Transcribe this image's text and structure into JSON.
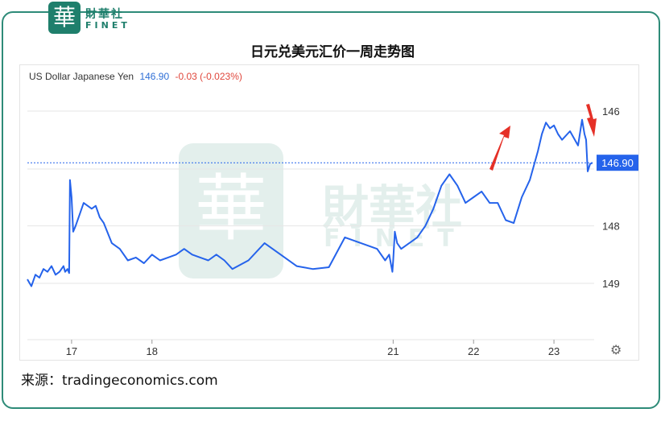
{
  "logo": {
    "cn": "財華社",
    "en": "FINET",
    "badge": "華"
  },
  "watermark": {
    "badge": "華",
    "cn": "財華社",
    "en": "FINET"
  },
  "title": "日元兑美元汇价一周走势图",
  "header": {
    "instrument": "US Dollar Japanese Yen",
    "price": "146.90",
    "change": "-0.03 (-0.023%)",
    "price_color": "#2f6fd6",
    "change_color": "#e0473c"
  },
  "source": "来源：tradingeconomics.com",
  "colors": {
    "line": "#2563eb",
    "arrow": "#e53027",
    "grid": "#e6e6e6",
    "frame": "#2e8b78"
  },
  "icons": {
    "settings": "gear-icon"
  },
  "chart_data": {
    "type": "line",
    "title": "",
    "xlabel": "",
    "ylabel": "",
    "y_inverted": true,
    "ylim": [
      149.9,
      145.6
    ],
    "y_ticks": [
      "146",
      "148",
      "149"
    ],
    "y_tick_values": [
      146,
      148,
      149
    ],
    "x_ticks": [
      "17",
      "18",
      "21",
      "22",
      "23"
    ],
    "x_tick_values": [
      17,
      18,
      21,
      22,
      23
    ],
    "xlim": [
      16.45,
      23.5
    ],
    "last_price_label": "146.90",
    "last_price": 146.9,
    "series": [
      {
        "x": [
          16.45,
          16.5,
          16.55,
          16.6,
          16.65,
          16.7,
          16.75,
          16.8,
          16.85,
          16.9,
          16.92,
          16.95,
          16.97,
          16.98,
          17.0,
          17.02,
          17.05,
          17.1,
          17.15,
          17.2,
          17.25,
          17.3,
          17.35,
          17.4,
          17.5,
          17.6,
          17.7,
          17.8,
          17.9,
          18.0,
          18.1,
          18.2,
          18.3,
          18.4,
          18.5,
          18.6,
          18.7,
          18.8,
          18.9,
          19.0,
          19.2,
          19.4,
          19.6,
          19.8,
          20.0,
          20.2,
          20.4,
          20.6,
          20.8,
          20.9,
          20.95,
          20.99,
          21.0,
          21.02,
          21.05,
          21.1,
          21.2,
          21.3,
          21.4,
          21.5,
          21.6,
          21.7,
          21.8,
          21.9,
          22.0,
          22.1,
          22.2,
          22.3,
          22.4,
          22.5,
          22.6,
          22.7,
          22.8,
          22.85,
          22.9,
          22.95,
          23.0,
          23.05,
          23.1,
          23.2,
          23.3,
          23.35,
          23.38,
          23.4,
          23.42,
          23.45,
          23.48
        ],
        "y": [
          148.93,
          149.05,
          148.85,
          148.9,
          148.75,
          148.8,
          148.7,
          148.85,
          148.8,
          148.7,
          148.8,
          148.75,
          148.82,
          147.2,
          147.5,
          148.1,
          148.0,
          147.8,
          147.6,
          147.65,
          147.7,
          147.65,
          147.85,
          147.95,
          148.3,
          148.4,
          148.6,
          148.55,
          148.65,
          148.5,
          148.6,
          148.55,
          148.5,
          148.4,
          148.5,
          148.55,
          148.6,
          148.5,
          148.6,
          148.75,
          148.6,
          148.3,
          148.5,
          148.7,
          148.75,
          148.72,
          148.2,
          148.3,
          148.4,
          148.6,
          148.5,
          148.8,
          148.6,
          148.1,
          148.3,
          148.4,
          148.3,
          148.2,
          148.0,
          147.7,
          147.3,
          147.1,
          147.3,
          147.6,
          147.5,
          147.4,
          147.6,
          147.6,
          147.9,
          147.95,
          147.5,
          147.2,
          146.7,
          146.4,
          146.2,
          146.3,
          146.25,
          146.4,
          146.5,
          146.35,
          146.6,
          146.15,
          146.4,
          146.5,
          147.05,
          146.92,
          146.9
        ]
      }
    ]
  }
}
